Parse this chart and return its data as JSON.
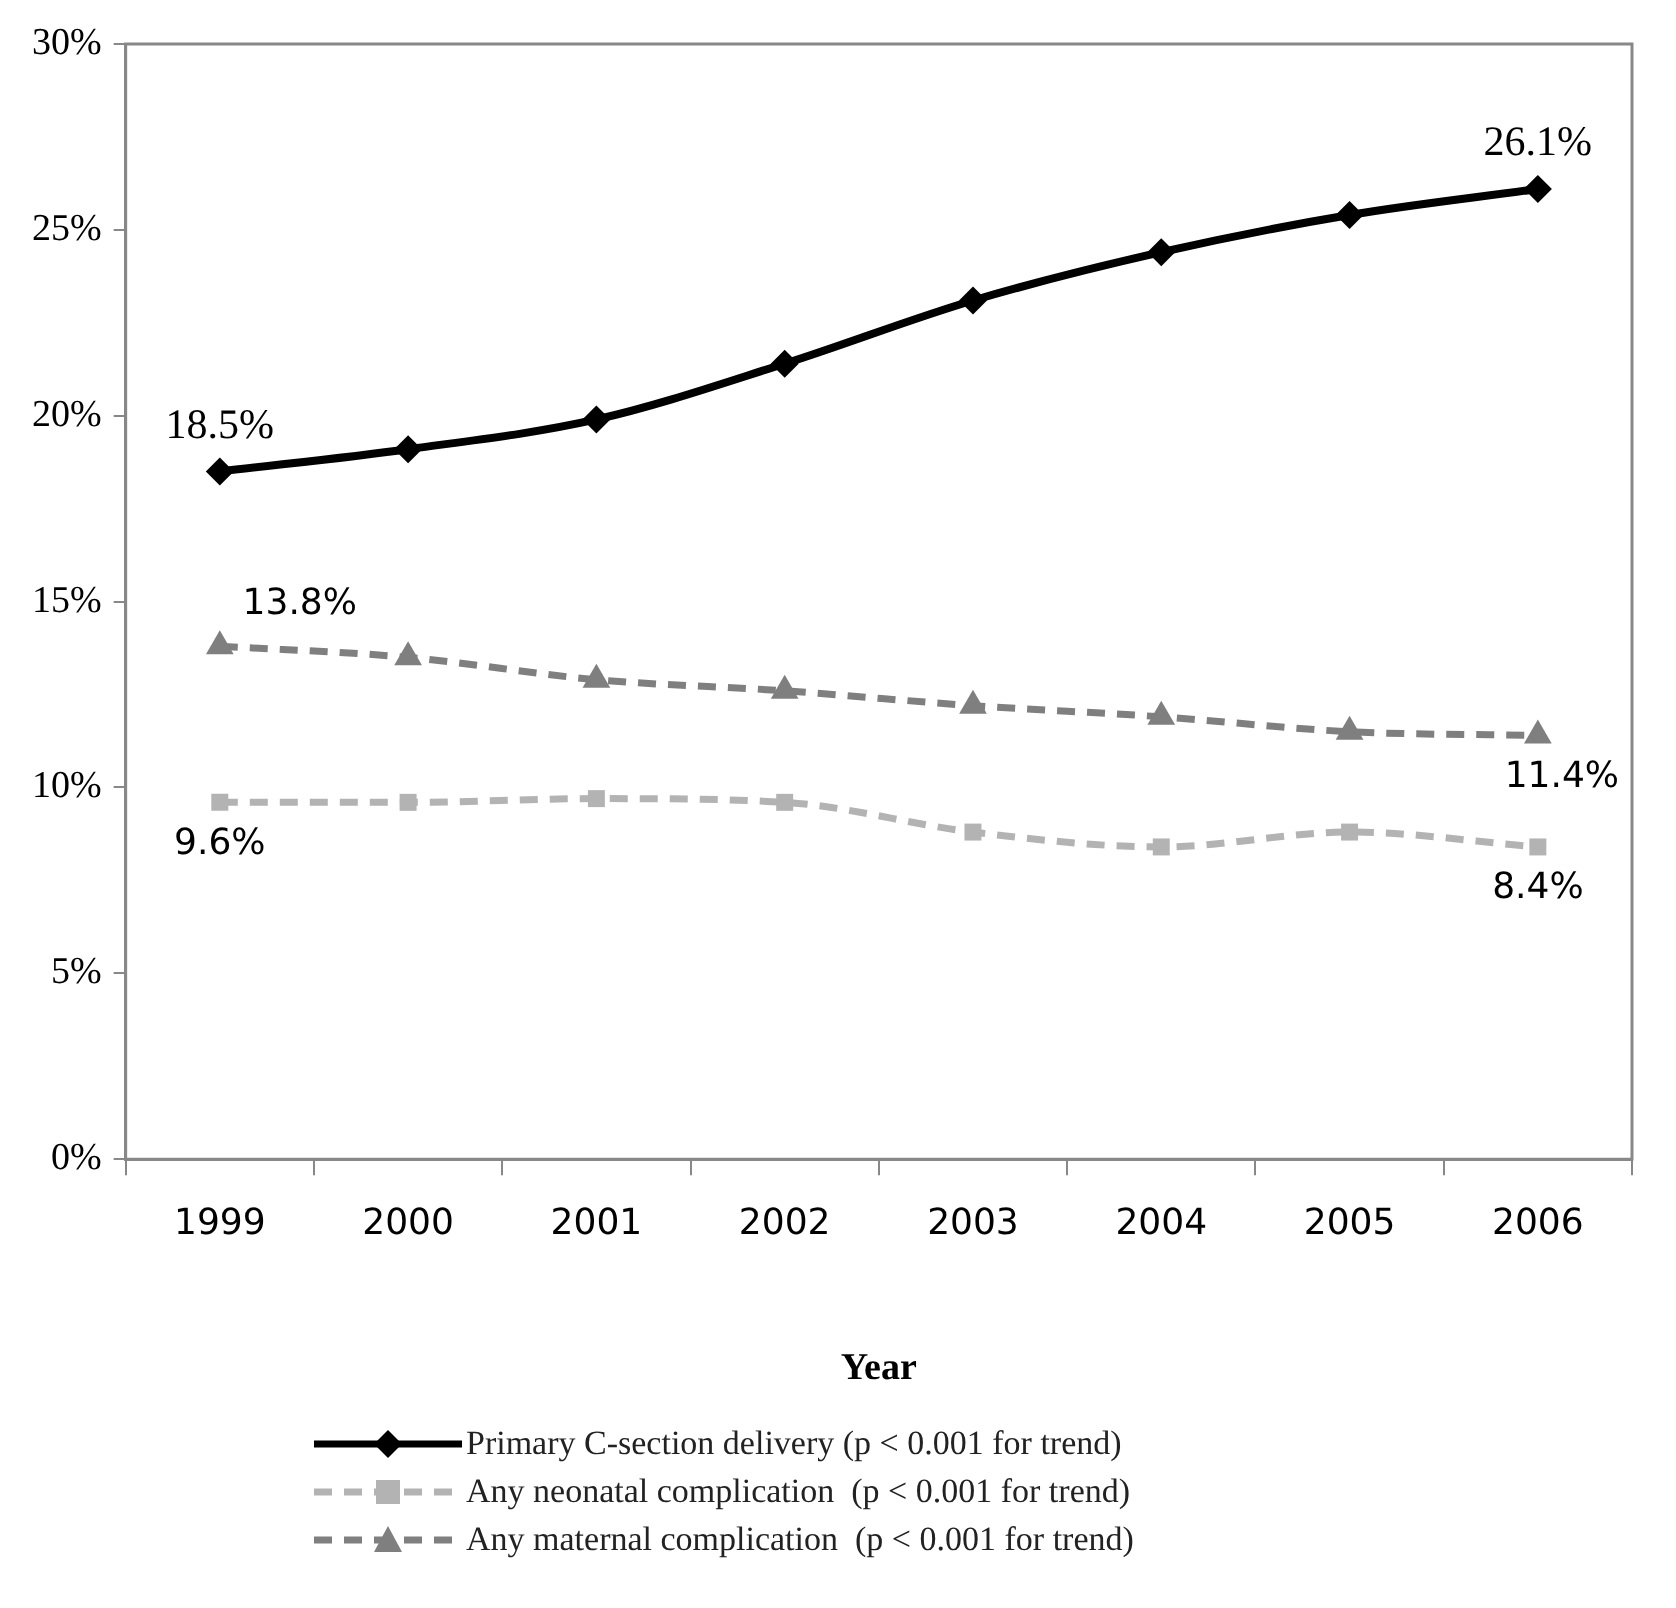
{
  "chart_data": {
    "type": "line",
    "xlabel": "Year",
    "categories": [
      "1999",
      "2000",
      "2001",
      "2002",
      "2003",
      "2004",
      "2005",
      "2006"
    ],
    "ylim": [
      0,
      30
    ],
    "yticks": [
      {
        "value": 0,
        "label": "0%"
      },
      {
        "value": 5,
        "label": "5%"
      },
      {
        "value": 10,
        "label": "10%"
      },
      {
        "value": 15,
        "label": "15%"
      },
      {
        "value": 20,
        "label": "20%"
      },
      {
        "value": 25,
        "label": "25%"
      },
      {
        "value": 30,
        "label": "30%"
      }
    ],
    "grid": false,
    "legend": "bottom",
    "series": [
      {
        "name": "Primary C-section delivery (p < 0.001 for trend)",
        "color": "#000000",
        "marker": "diamond",
        "line_style": "solid",
        "values": [
          18.5,
          19.1,
          19.9,
          21.4,
          23.1,
          24.4,
          25.4,
          26.1
        ],
        "value_labels": [
          "18.5%",
          null,
          null,
          null,
          null,
          null,
          null,
          "26.1%"
        ]
      },
      {
        "name": "Any neonatal complication  (p < 0.001 for trend)",
        "color": "#b3b3b3",
        "marker": "square",
        "line_style": "dashed",
        "values": [
          9.6,
          9.6,
          9.7,
          9.6,
          8.8,
          8.4,
          8.8,
          8.4
        ],
        "value_labels": [
          "9.6%",
          null,
          null,
          null,
          null,
          null,
          null,
          "8.4%"
        ]
      },
      {
        "name": "Any maternal complication  (p < 0.001 for trend)",
        "color": "#7f7f7f",
        "marker": "triangle",
        "line_style": "dashed",
        "values": [
          13.8,
          13.5,
          12.9,
          12.6,
          12.2,
          11.9,
          11.5,
          11.4
        ],
        "value_labels": [
          "13.8%",
          null,
          null,
          null,
          null,
          null,
          null,
          "11.4%"
        ]
      }
    ]
  }
}
